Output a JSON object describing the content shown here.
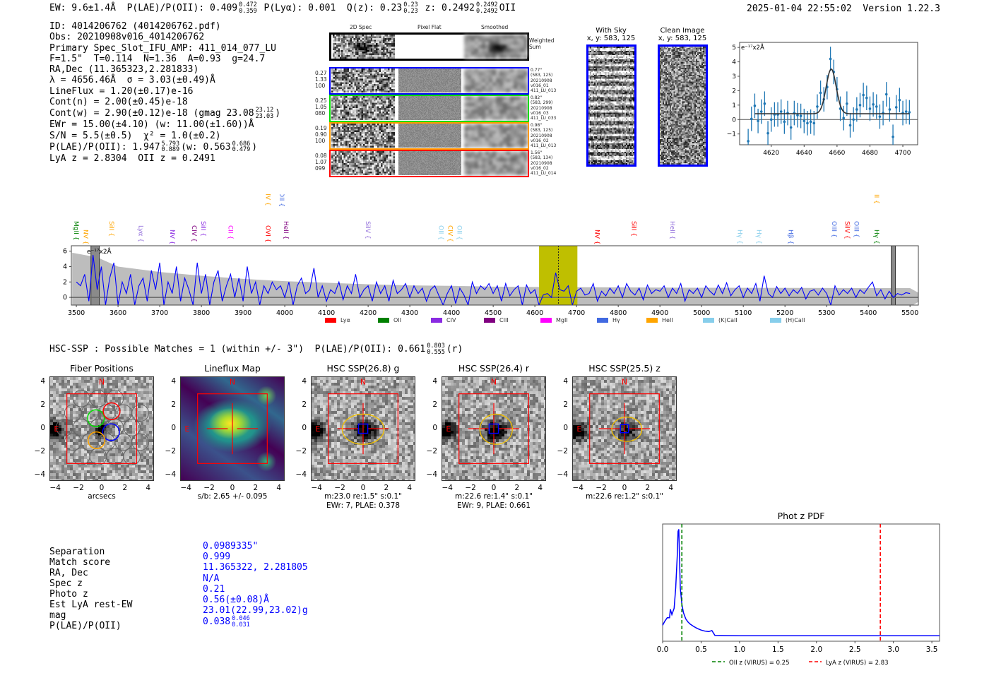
{
  "header": {
    "ew": "EW: 9.6±1.4Å  P(LAE)/P(OII): 0.409",
    "plae_hi": "0.472",
    "plae_lo": "0.359",
    "plya_qz": " P(Lyα): 0.001  Q(z): 0.23",
    "qz_hi": "0.23",
    "qz_lo": "0.23",
    "z": " z: 0.2492",
    "z_hi": "0.2492",
    "z_lo": "0.2492",
    "z_line": "OII",
    "timestamp": "2025-01-04 22:55:02",
    "version": "Version 1.22.3"
  },
  "info": [
    [
      {
        "t": "ID: 4014206762 (4014206762.pdf)"
      }
    ],
    [
      {
        "t": "Obs: 20210908v016_4014206762"
      }
    ],
    [
      {
        "t": "Primary Spec_Slot_IFU_AMP: 411_014_077_LU"
      }
    ],
    [
      {
        "t": "F=1.5\"  T=0.114  N=1.36  A=0.93  g=24.7"
      }
    ],
    [
      {
        "t": "RA,Dec (11.365323,2.281833)"
      }
    ],
    [
      {
        "t": "λ = 4656.46Å  σ = 3.03(±0.49)Å"
      }
    ],
    [
      {
        "t": "LineFlux = 1.20(±0.17)e-16"
      }
    ],
    [
      {
        "t": "Cont(n) = 2.00(±0.45)e-18"
      }
    ],
    [
      {
        "t": "Cont(w) = 2.90(±0.12)e-18 (gmag 23.08"
      },
      {
        "hi": "23.12",
        "lo": "23.03"
      },
      {
        "t": ")"
      }
    ],
    [
      {
        "t": "EWr = 15.00(±4.10) (w: 11.00(±1.60))Å"
      }
    ],
    [
      {
        "t": "S/N = 5.5(±0.5)  χ² = 1.0(±0.2)"
      }
    ],
    [
      {
        "t": "P(LAE)/P(OII): 1.947"
      },
      {
        "hi": "5.793",
        "lo": "0.889"
      },
      {
        "t": "(w: 0.563"
      },
      {
        "hi": "0.686",
        "lo": "0.479"
      },
      {
        "t": ")"
      }
    ],
    [
      {
        "t": "LyA z = 2.8304  OII z = 0.2491"
      }
    ]
  ],
  "spec2d": {
    "col_headers": [
      "2D Spec",
      "Pixel Flat",
      "Smoothed"
    ],
    "weighted_sum_label": "Weighted\nSum",
    "rows": [
      {
        "color": "#0000ff",
        "left": "0.27\n1.33\n100",
        "right": "0.77\"\n(583, 125)\n20210908\nv016_01\n411_LU_013"
      },
      {
        "color": "#00dd00",
        "left": "0.25\n1.05\n080",
        "right": "0.82\"\n(583, 299)\n20210908\nv016_03\n411_LU_033"
      },
      {
        "color": "#ff9900",
        "left": "0.19\n0.90\n100",
        "right": "0.98\"\n(583, 125)\n20210908\nv016_02\n411_LU_013"
      },
      {
        "color": "#ff0000",
        "left": "0.08\n1.07\n099",
        "right": "1.56\"\n(583, 134)\n20210908\nv016_02\n411_LU_014"
      }
    ]
  },
  "ccd": {
    "with_sky_title": "With Sky",
    "with_sky_xy": "x, y: 583, 125",
    "clean_title": "Clean Image",
    "clean_xy": "x, y: 583, 125"
  },
  "hsc": {
    "summary": "HSC-SSP : Possible Matches = 1 (within +/- 3\")  P(LAE)/P(OII): 0.661",
    "summary_hi": "0.803",
    "summary_lo": "0.555",
    "summary_tail": "(r)",
    "panels": [
      {
        "title": "Fiber Positions",
        "caption1": "arcsecs",
        "caption2": ""
      },
      {
        "title": "Lineflux Map",
        "caption1": "s/b: 2.65 +/- 0.095",
        "caption2": ""
      },
      {
        "title": "HSC SSP(26.8) g",
        "caption1": "m:23.0  re:1.5\"  s:0.1\"",
        "caption2": "EWr: 7, PLAE: 0.378"
      },
      {
        "title": "HSC SSP(26.4) r",
        "caption1": "m:22.6  re:1.4\"  s:0.1\"",
        "caption2": "EWr: 9, PLAE: 0.661"
      },
      {
        "title": "HSC SSP(25.5) z",
        "caption1": "m:22.6  re:1.2\"  s:0.1\"",
        "caption2": ""
      }
    ],
    "compass_n": "N",
    "compass_e": "E",
    "ticks": [
      "−4",
      "−2",
      "0",
      "2",
      "4"
    ],
    "tick_values": [
      -4,
      -2,
      0,
      2,
      4
    ]
  },
  "match_table": {
    "rows": [
      {
        "label": "Separation",
        "value": "0.0989335\""
      },
      {
        "label": "Match score",
        "value": "0.999"
      },
      {
        "label": "RA, Dec",
        "value": "11.365322, 2.281805"
      },
      {
        "label": "Spec z",
        "value": "N/A"
      },
      {
        "label": "Photo z",
        "value": "0.21"
      },
      {
        "label": "Est LyA rest-EW",
        "value": "0.56(±0.08)Å"
      },
      {
        "label": "mag",
        "value": "23.01(22.99,23.02)g"
      },
      {
        "label": "P(LAE)/P(OII)",
        "value": "0.038",
        "hi": "0.046",
        "lo": "0.031"
      }
    ]
  },
  "chart_data": [
    {
      "id": "zoom_spectrum",
      "type": "scatter",
      "ylabel": "e⁻¹⁷x2Å",
      "xlim": [
        4600.8,
        4709
      ],
      "ylim": [
        -1.75,
        5.35
      ],
      "xticks": [
        4620,
        4640,
        4660,
        4680,
        4700
      ],
      "yticks": [
        -1,
        0,
        1,
        2,
        3,
        4,
        5
      ],
      "x": [
        4606,
        4608,
        4610,
        4612,
        4614,
        4616,
        4618,
        4620,
        4622,
        4624,
        4626,
        4628,
        4630,
        4632,
        4634,
        4636,
        4638,
        4640,
        4642,
        4644,
        4646,
        4648,
        4650,
        4652,
        4654,
        4656,
        4658,
        4660,
        4662,
        4664,
        4666,
        4668,
        4670,
        4672,
        4674,
        4676,
        4678,
        4680,
        4682,
        4684,
        4686,
        4688,
        4690,
        4692,
        4694,
        4696,
        4698,
        4700,
        4702,
        4704
      ],
      "y": [
        -1.5,
        0.05,
        0.95,
        -0.1,
        0.55,
        1.1,
        -0.95,
        0.0,
        0.35,
        0.35,
        0.55,
        -0.15,
        0.45,
        -0.55,
        0.45,
        0.3,
        0.25,
        -0.1,
        -0.25,
        -0.15,
        -0.25,
        0.9,
        1.85,
        1.4,
        2.25,
        4.2,
        3.3,
        2.1,
        0.75,
        0.1,
        1.1,
        -0.4,
        0.0,
        0.7,
        1.0,
        1.7,
        1.5,
        0.75,
        1.05,
        0.9,
        0.2,
        0.45,
        1.75,
        0.7,
        -1.2,
        0.85,
        1.35,
        0.45,
        0.55,
        0.5
      ],
      "yerr": 0.85,
      "fit": {
        "type": "gaussian",
        "center": 4656.46,
        "sigma": 3.03,
        "amplitude": 3.1,
        "continuum": 0.4,
        "range": [
          4610,
          4704
        ]
      }
    },
    {
      "id": "full_spectrum",
      "type": "line",
      "ylabel": "e⁻¹⁷x2Å",
      "xlim": [
        3488,
        5520
      ],
      "ylim": [
        -1.0,
        6.7
      ],
      "xticks": [
        3500,
        3600,
        3700,
        3800,
        3900,
        4000,
        4100,
        4200,
        4300,
        4400,
        4500,
        4600,
        4700,
        4800,
        4900,
        5000,
        5100,
        5200,
        5300,
        5400,
        5500
      ],
      "yticks": [
        0,
        2,
        4,
        6
      ],
      "x_start": 3500,
      "x_step": 10,
      "y": [
        2.0,
        1.5,
        3.0,
        -0.5,
        5.5,
        1.0,
        4.0,
        -1.0,
        2.5,
        4.5,
        -1.0,
        2.0,
        0.5,
        3.0,
        -1.0,
        1.5,
        2.5,
        -0.5,
        3.5,
        1.0,
        4.5,
        -1.0,
        2.0,
        0.5,
        4.0,
        -0.5,
        2.5,
        1.0,
        -1.0,
        4.5,
        0.5,
        3.0,
        -1.0,
        2.0,
        3.5,
        -0.5,
        1.5,
        3.0,
        0.0,
        2.5,
        -0.5,
        4.0,
        0.5,
        2.0,
        -1.0,
        1.5,
        0.5,
        2.0,
        1.0,
        1.5,
        0.0,
        2.0,
        -1.0,
        1.5,
        2.5,
        0.5,
        1.0,
        3.8,
        0.0,
        1.5,
        -0.5,
        1.0,
        0.5,
        2.0,
        -0.3,
        1.5,
        0.5,
        3.0,
        0.0,
        1.0,
        1.5,
        -0.5,
        2.0,
        0.5,
        1.5,
        -0.5,
        2.2,
        0.5,
        1.0,
        1.8,
        0.0,
        1.5,
        0.5,
        1.2,
        -0.5,
        1.0,
        1.5,
        0.2,
        -1.0,
        0.5,
        1.5,
        -0.8,
        1.2,
        0.3,
        -1.0,
        2.0,
        0.5,
        1.5,
        1.0,
        1.8,
        0.5,
        1.5,
        -0.5,
        1.8,
        0.2,
        1.0,
        1.5,
        -1.0,
        1.6,
        0.5,
        1.0,
        -1.0,
        0.3,
        0.5,
        0.0,
        3.2,
        1.0,
        0.8,
        1.5,
        -1.0,
        0.8,
        1.2,
        0.3,
        0.5,
        1.8,
        -0.5,
        0.8,
        0.2,
        1.2,
        0.5,
        1.5,
        0.0,
        1.8,
        0.8,
        0.3,
        1.2,
        -0.3,
        1.6,
        0.5,
        1.0,
        0.8,
        1.5,
        0.0,
        1.2,
        0.5,
        1.8,
        -0.5,
        1.0,
        0.5,
        1.2,
        0.0,
        1.5,
        0.8,
        0.3,
        1.6,
        0.5,
        1.9,
        0.2,
        1.0,
        1.5,
        0.0,
        1.2,
        0.5,
        1.8,
        -0.5,
        2.8,
        0.5,
        0.0,
        1.4,
        0.5,
        1.2,
        0.2,
        1.0,
        0.5,
        1.3,
        -0.2,
        0.8,
        1.0,
        0.3,
        1.2,
        0.5,
        -1.0,
        1.5,
        0.3,
        1.0,
        0.5,
        1.2,
        0.0,
        1.0,
        0.5,
        1.3,
        2.0,
        0.2,
        1.0,
        -0.2,
        0.8,
        0.0,
        0.5,
        0.3,
        0.6,
        0.5
      ],
      "error_envelope": {
        "x": [
          3490,
          3550,
          3600,
          3700,
          3800,
          3900,
          4000,
          4100,
          4200,
          4300,
          4400,
          4500,
          4600,
          5000,
          5500,
          5520
        ],
        "y": [
          5.8,
          5.2,
          4.0,
          3.3,
          2.8,
          2.4,
          2.1,
          1.9,
          1.7,
          1.55,
          1.5,
          1.4,
          1.35,
          1.25,
          1.2,
          0.6
        ]
      },
      "highlight_band": [
        4610,
        4702
      ],
      "line_center": 4656.46,
      "masked_regions": [
        [
          3535,
          3555
        ],
        [
          5455,
          5465
        ]
      ],
      "line_labels": [
        {
          "w": 3500,
          "label": "MgII",
          "color": "#008000",
          "tier": 0
        },
        {
          "w": 3523,
          "label": "NV",
          "color": "#ffa500",
          "tier": 0
        },
        {
          "w": 3585,
          "label": "SiII",
          "color": "#ffa500",
          "tier": 0
        },
        {
          "w": 3655,
          "label": "Lyα",
          "color": "#9370db",
          "tier": 0
        },
        {
          "w": 3730,
          "label": "NV",
          "color": "#8a2be2",
          "tier": 0
        },
        {
          "w": 3783,
          "label": "CIV",
          "color": "#800080",
          "tier": 0
        },
        {
          "w": 3800,
          "label": "SiII",
          "color": "#8a2be2",
          "tier": 0
        },
        {
          "w": 3870,
          "label": "CII",
          "color": "#ff00ff",
          "tier": 0
        },
        {
          "w": 3960,
          "label": "OVI",
          "color": "#ff0000",
          "tier": 0
        },
        {
          "w": 4003,
          "label": "HeII",
          "color": "#800080",
          "tier": 0
        },
        {
          "w": 4200,
          "label": "SiIV",
          "color": "#9370db",
          "tier": 0
        },
        {
          "w": 4375,
          "label": "OII",
          "color": "#87ceeb",
          "tier": 0
        },
        {
          "w": 4393,
          "label": "CIV",
          "color": "#ffa500",
          "tier": 0
        },
        {
          "w": 4412,
          "label": "OII",
          "color": "#87ceeb",
          "tier": 0
        },
        {
          "w": 4750,
          "label": "NV",
          "color": "#ff0000",
          "tier": 0
        },
        {
          "w": 4838,
          "label": "SiII",
          "color": "#ff0000",
          "tier": 0
        },
        {
          "w": 4930,
          "label": "HeII",
          "color": "#9370db",
          "tier": 0
        },
        {
          "w": 5092,
          "label": "Hγ",
          "color": "#87ceeb",
          "tier": 0
        },
        {
          "w": 5138,
          "label": "Hγ",
          "color": "#87ceeb",
          "tier": 0
        },
        {
          "w": 5214,
          "label": "Hβ",
          "color": "#4169e1",
          "tier": 0
        },
        {
          "w": 5318,
          "label": "OIII",
          "color": "#4169e1",
          "tier": 0
        },
        {
          "w": 5350,
          "label": "SiIV",
          "color": "#ff0000",
          "tier": 0
        },
        {
          "w": 5370,
          "label": "OIII",
          "color": "#4169e1",
          "tier": 0
        },
        {
          "w": 5420,
          "label": "Hγ",
          "color": "#008000",
          "tier": 0
        },
        {
          "w": 3960,
          "label": "SiIV",
          "color": "#ffa500",
          "tier": 1
        },
        {
          "w": 3993,
          "label": "OII",
          "color": "#4169e1",
          "tier": 1
        },
        {
          "w": 5420,
          "label": "CIII",
          "color": "#ffa500",
          "tier": 1
        }
      ],
      "legend": [
        {
          "label": "Lyα",
          "color": "#ff0000"
        },
        {
          "label": "OII",
          "color": "#008000"
        },
        {
          "label": "CIV",
          "color": "#8a2be2"
        },
        {
          "label": "CIII",
          "color": "#800080"
        },
        {
          "label": "MgII",
          "color": "#ff00ff"
        },
        {
          "label": "Hγ",
          "color": "#4169e1"
        },
        {
          "label": "HeII",
          "color": "#ffa500"
        },
        {
          "label": "(K)CaII",
          "color": "#87ceeb"
        },
        {
          "label": "(H)CaII",
          "color": "#87ceeb"
        }
      ],
      "legend_position": "bottom-center"
    },
    {
      "id": "phot_z_pdf",
      "type": "line",
      "title": "Phot z PDF",
      "xlim": [
        0,
        3.6
      ],
      "ylim": [
        -0.05,
        1.05
      ],
      "xticks": [
        0.0,
        0.5,
        1.0,
        1.5,
        2.0,
        2.5,
        3.0,
        3.5
      ],
      "xtick_labels": [
        "0.0",
        "0.5",
        "1.0",
        "1.5",
        "2.0",
        "2.5",
        "3.0",
        "3.5"
      ],
      "x": [
        0,
        0.03,
        0.06,
        0.09,
        0.1,
        0.12,
        0.15,
        0.17,
        0.19,
        0.2,
        0.21,
        0.22,
        0.23,
        0.25,
        0.27,
        0.3,
        0.33,
        0.36,
        0.4,
        0.45,
        0.5,
        0.55,
        0.6,
        0.64,
        0.68,
        0.8,
        1.0,
        2.0,
        3.0,
        3.6
      ],
      "y": [
        0.1,
        0.14,
        0.17,
        0.17,
        0.25,
        0.2,
        0.26,
        0.45,
        0.75,
        0.98,
        1.0,
        0.7,
        0.45,
        0.3,
        0.22,
        0.16,
        0.13,
        0.11,
        0.09,
        0.07,
        0.055,
        0.045,
        0.04,
        0.05,
        0.005,
        0.003,
        0.002,
        0.002,
        0.002,
        0.002
      ],
      "vlines": [
        {
          "x": 0.25,
          "color": "#008000",
          "label": "OII z (VIRUS) = 0.25"
        },
        {
          "x": 2.83,
          "color": "#ff0000",
          "label": "LyA z (VIRUS) = 2.83"
        }
      ],
      "legend_position": "bottom-center"
    }
  ]
}
